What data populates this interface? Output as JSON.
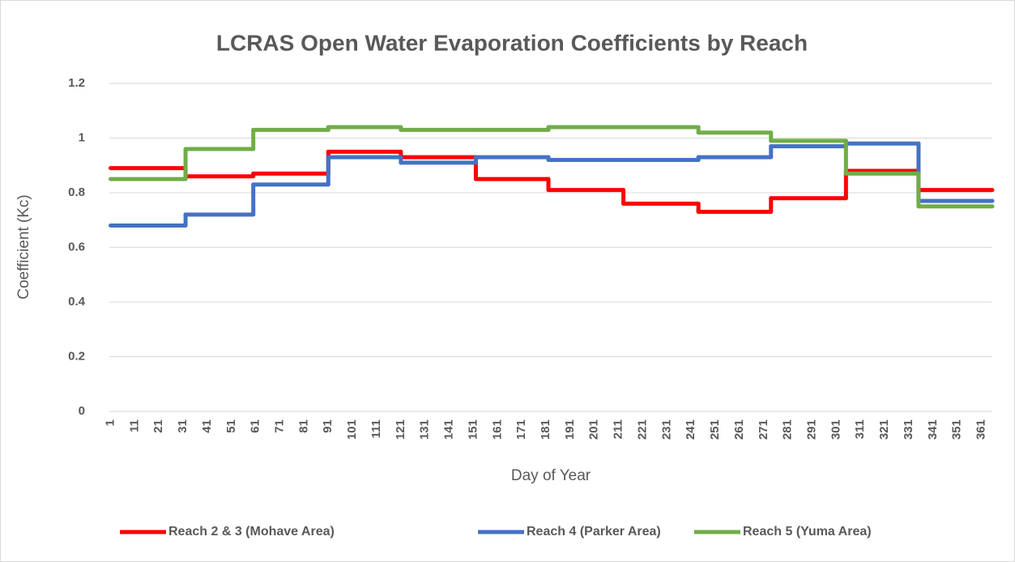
{
  "chart_data": {
    "type": "step",
    "title": "LCRAS Open Water Evaporation Coefficients by Reach",
    "x_label": "Day of Year",
    "y_label": "Coefficient (Kc)",
    "x": [
      1,
      32,
      60,
      91,
      121,
      152,
      182,
      213,
      244,
      274,
      305,
      335
    ],
    "xlim": [
      0.5,
      365.5
    ],
    "xticks": [
      1,
      11,
      21,
      31,
      41,
      51,
      61,
      71,
      81,
      91,
      101,
      111,
      121,
      131,
      141,
      151,
      161,
      171,
      181,
      191,
      201,
      211,
      221,
      231,
      241,
      251,
      261,
      271,
      281,
      291,
      301,
      311,
      321,
      331,
      341,
      351,
      361
    ],
    "ylim": [
      0,
      1.2
    ],
    "yticks": [
      0,
      0.2,
      0.4,
      0.6,
      0.8,
      1,
      1.2
    ],
    "grid": true,
    "legend": "bottom",
    "series": [
      {
        "name": "Reach 2 & 3 (Mohave Area)",
        "color": "#ff0000",
        "values": [
          0.89,
          0.86,
          0.87,
          0.95,
          0.93,
          0.85,
          0.81,
          0.76,
          0.73,
          0.78,
          0.88,
          0.81
        ]
      },
      {
        "name": "Reach 4 (Parker Area)",
        "color": "#4472c4",
        "values": [
          0.68,
          0.72,
          0.83,
          0.93,
          0.91,
          0.93,
          0.92,
          0.92,
          0.93,
          0.97,
          0.98,
          0.77
        ]
      },
      {
        "name": "Reach 5 (Yuma Area)",
        "color": "#70ad47",
        "values": [
          0.85,
          0.96,
          1.03,
          1.04,
          1.03,
          1.03,
          1.04,
          1.04,
          1.02,
          0.99,
          0.87,
          0.75
        ]
      }
    ]
  }
}
